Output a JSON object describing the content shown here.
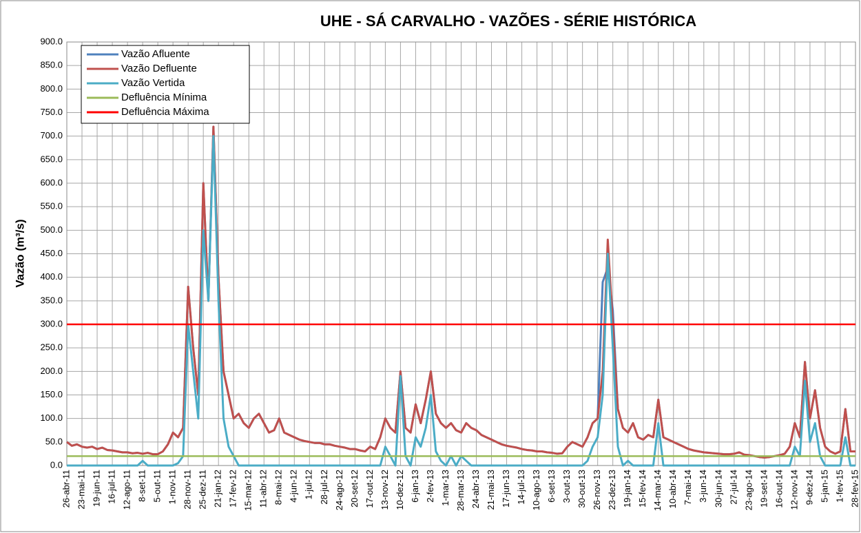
{
  "chart_data": {
    "type": "line",
    "title": "UHE - SÁ CARVALHO - VAZÕES - SÉRIE HISTÓRICA",
    "y_label": "Vazão (m³/s)",
    "categories": [
      "26-abr-11",
      null,
      null,
      "23-mai-11",
      null,
      null,
      "19-jun-11",
      null,
      null,
      "16-jul-11",
      null,
      null,
      "12-ago-11",
      null,
      null,
      "8-set-11",
      null,
      null,
      "5-out-11",
      null,
      null,
      "1-nov-11",
      null,
      null,
      "28-nov-11",
      null,
      null,
      "25-dez-11",
      null,
      null,
      "21-jan-12",
      null,
      null,
      "17-fev-12",
      null,
      null,
      "15-mar-12",
      null,
      null,
      "11-abr-12",
      null,
      null,
      "8-mai-12",
      null,
      null,
      "4-jun-12",
      null,
      null,
      "1-jul-12",
      null,
      null,
      "28-jul-12",
      null,
      null,
      "24-ago-12",
      null,
      null,
      "20-set-12",
      null,
      null,
      "17-out-12",
      null,
      null,
      "13-nov-12",
      null,
      null,
      "10-dez-12",
      null,
      null,
      "6-jan-13",
      null,
      null,
      "2-fev-13",
      null,
      null,
      "1-mar-13",
      null,
      null,
      "28-mar-13",
      null,
      null,
      "24-abr-13",
      null,
      null,
      "21-mai-13",
      null,
      null,
      "17-jun-13",
      null,
      null,
      "14-jul-13",
      null,
      null,
      "10-ago-13",
      null,
      null,
      "6-set-13",
      null,
      null,
      "3-out-13",
      null,
      null,
      "30-out-13",
      null,
      null,
      "26-nov-13",
      null,
      null,
      "23-dez-13",
      null,
      null,
      "19-jan-14",
      null,
      null,
      "15-fev-14",
      null,
      null,
      "14-mar-14",
      null,
      null,
      "10-abr-14",
      null,
      null,
      "7-mai-14",
      null,
      null,
      "3-jun-14",
      null,
      null,
      "30-jun-14",
      null,
      null,
      "27-jul-14",
      null,
      null,
      "23-ago-14",
      null,
      null,
      "19-set-14",
      null,
      null,
      "16-out-14",
      null,
      null,
      "12-nov-14",
      null,
      null,
      "9-dez-14",
      null,
      null,
      "5-jan-15",
      null,
      null,
      "1-fev-15",
      null,
      null,
      "28-fev-15"
    ],
    "series": [
      {
        "name": "Vazão Afluente",
        "color": "#4f81bd",
        "values": [
          50,
          42,
          45,
          40,
          38,
          40,
          35,
          38,
          33,
          32,
          30,
          28,
          28,
          26,
          27,
          25,
          27,
          24,
          24,
          30,
          45,
          70,
          60,
          80,
          380,
          250,
          150,
          600,
          350,
          720,
          400,
          200,
          150,
          100,
          110,
          90,
          80,
          100,
          110,
          90,
          70,
          75,
          100,
          70,
          65,
          60,
          55,
          52,
          50,
          48,
          48,
          45,
          45,
          42,
          40,
          38,
          35,
          35,
          32,
          30,
          40,
          35,
          60,
          100,
          80,
          70,
          200,
          80,
          70,
          130,
          90,
          140,
          200,
          110,
          90,
          80,
          90,
          75,
          70,
          90,
          80,
          75,
          65,
          60,
          55,
          50,
          45,
          42,
          40,
          38,
          35,
          33,
          32,
          30,
          30,
          28,
          27,
          25,
          26,
          40,
          50,
          45,
          40,
          60,
          90,
          100,
          390,
          420,
          330,
          120,
          80,
          70,
          90,
          60,
          55,
          65,
          60,
          140,
          60,
          55,
          50,
          45,
          40,
          35,
          32,
          30,
          28,
          27,
          26,
          25,
          24,
          24,
          25,
          28,
          23,
          22,
          20,
          18,
          17,
          18,
          20,
          22,
          25,
          40,
          90,
          60,
          220,
          100,
          160,
          80,
          40,
          30,
          25,
          30,
          120,
          30,
          30
        ]
      },
      {
        "name": "Vazão Defluente",
        "color": "#c0504d",
        "values": [
          50,
          42,
          45,
          40,
          38,
          40,
          35,
          38,
          33,
          32,
          30,
          28,
          28,
          26,
          27,
          25,
          27,
          24,
          24,
          30,
          45,
          70,
          60,
          80,
          380,
          250,
          150,
          600,
          350,
          720,
          400,
          200,
          150,
          100,
          110,
          90,
          80,
          100,
          110,
          90,
          70,
          75,
          100,
          70,
          65,
          60,
          55,
          52,
          50,
          48,
          48,
          45,
          45,
          42,
          40,
          38,
          35,
          35,
          32,
          30,
          40,
          35,
          60,
          100,
          80,
          70,
          200,
          80,
          70,
          130,
          90,
          140,
          200,
          110,
          90,
          80,
          90,
          75,
          70,
          90,
          80,
          75,
          65,
          60,
          55,
          50,
          45,
          42,
          40,
          38,
          35,
          33,
          32,
          30,
          30,
          28,
          27,
          25,
          26,
          40,
          50,
          45,
          40,
          60,
          90,
          100,
          200,
          480,
          300,
          120,
          80,
          70,
          90,
          60,
          55,
          65,
          60,
          140,
          60,
          55,
          50,
          45,
          40,
          35,
          32,
          30,
          28,
          27,
          26,
          25,
          24,
          24,
          25,
          28,
          23,
          22,
          20,
          18,
          17,
          18,
          20,
          22,
          25,
          40,
          90,
          60,
          220,
          100,
          160,
          80,
          40,
          30,
          25,
          30,
          120,
          30,
          30
        ]
      },
      {
        "name": "Vazão Vertida",
        "color": "#4bacc6",
        "values": [
          0,
          0,
          0,
          0,
          0,
          0,
          0,
          0,
          0,
          0,
          0,
          0,
          0,
          0,
          0,
          10,
          0,
          0,
          0,
          0,
          0,
          0,
          5,
          20,
          300,
          200,
          100,
          500,
          350,
          700,
          350,
          100,
          40,
          20,
          0,
          0,
          0,
          0,
          0,
          0,
          0,
          0,
          0,
          0,
          0,
          0,
          0,
          0,
          0,
          0,
          0,
          0,
          0,
          0,
          0,
          0,
          0,
          0,
          0,
          0,
          0,
          0,
          0,
          40,
          20,
          0,
          190,
          20,
          0,
          60,
          40,
          80,
          150,
          30,
          10,
          0,
          20,
          0,
          20,
          10,
          0,
          0,
          0,
          0,
          0,
          0,
          0,
          0,
          0,
          0,
          0,
          0,
          0,
          0,
          0,
          0,
          0,
          0,
          0,
          0,
          0,
          0,
          0,
          10,
          40,
          60,
          150,
          450,
          250,
          40,
          0,
          10,
          0,
          0,
          0,
          0,
          0,
          90,
          0,
          0,
          0,
          0,
          0,
          0,
          0,
          0,
          0,
          0,
          0,
          0,
          0,
          0,
          0,
          0,
          0,
          0,
          0,
          0,
          0,
          0,
          0,
          0,
          0,
          0,
          40,
          20,
          180,
          50,
          90,
          20,
          0,
          0,
          0,
          0,
          60,
          0,
          0
        ]
      }
    ],
    "reference_lines": [
      {
        "name": "Defluência Mínima",
        "color": "#9bbb59",
        "value": 20
      },
      {
        "name": "Defluência Máxima",
        "color": "#ff0000",
        "value": 300
      }
    ],
    "ylim": [
      0,
      900
    ],
    "yticks": [
      {
        "value": 0,
        "label": "0.0"
      },
      {
        "value": 50,
        "label": "50.0"
      },
      {
        "value": 100,
        "label": "100.0"
      },
      {
        "value": 150,
        "label": "150.0"
      },
      {
        "value": 200,
        "label": "200.0"
      },
      {
        "value": 250,
        "label": "250.0"
      },
      {
        "value": 300,
        "label": "300.0"
      },
      {
        "value": 350,
        "label": "350.0"
      },
      {
        "value": 400,
        "label": "400.0"
      },
      {
        "value": 450,
        "label": "450.0"
      },
      {
        "value": 500,
        "label": "500.0"
      },
      {
        "value": 550,
        "label": "550.0"
      },
      {
        "value": 600,
        "label": "600.0"
      },
      {
        "value": 650,
        "label": "650.0"
      },
      {
        "value": 700,
        "label": "700.0"
      },
      {
        "value": 750,
        "label": "750.0"
      },
      {
        "value": 800,
        "label": "800.0"
      },
      {
        "value": 850,
        "label": "850.0"
      },
      {
        "value": 900,
        "label": "900.0"
      }
    ],
    "grid": true,
    "legend": "upper left"
  }
}
